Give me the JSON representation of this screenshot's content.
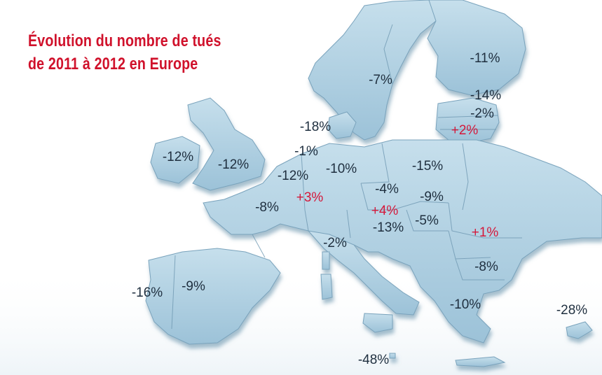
{
  "title": {
    "line1": "Évolution du nombre de tués",
    "line2": "de 2011 à 2012 en Europe"
  },
  "colors": {
    "title": "#d0112b",
    "decrease_label": "#1f2f3f",
    "increase_label": "#d4183a",
    "land_fill": "#a8ccdf",
    "land_edge": "#6f98b2",
    "background": "#ffffff"
  },
  "labels": [
    {
      "id": "finland",
      "text": "-11%",
      "trend": "down"
    },
    {
      "id": "sweden",
      "text": "-7%",
      "trend": "down"
    },
    {
      "id": "estonia",
      "text": "-14%",
      "trend": "down"
    },
    {
      "id": "latvia",
      "text": "-2%",
      "trend": "down"
    },
    {
      "id": "lithuania",
      "text": "+2%",
      "trend": "up"
    },
    {
      "id": "denmark",
      "text": "-18%",
      "trend": "down"
    },
    {
      "id": "ireland",
      "text": "-12%",
      "trend": "down"
    },
    {
      "id": "united-kingdom",
      "text": "-12%",
      "trend": "down"
    },
    {
      "id": "netherlands",
      "text": "-1%",
      "trend": "down"
    },
    {
      "id": "belgium",
      "text": "-12%",
      "trend": "down"
    },
    {
      "id": "germany",
      "text": "-10%",
      "trend": "down"
    },
    {
      "id": "poland",
      "text": "-15%",
      "trend": "down"
    },
    {
      "id": "luxembourg",
      "text": "+3%",
      "trend": "up"
    },
    {
      "id": "czech-republic",
      "text": "-4%",
      "trend": "down"
    },
    {
      "id": "slovakia",
      "text": "-9%",
      "trend": "down"
    },
    {
      "id": "france",
      "text": "-8%",
      "trend": "down"
    },
    {
      "id": "austria",
      "text": "+4%",
      "trend": "up"
    },
    {
      "id": "hungary",
      "text": "-5%",
      "trend": "down"
    },
    {
      "id": "slovenia",
      "text": "-13%",
      "trend": "down"
    },
    {
      "id": "romania",
      "text": "+1%",
      "trend": "up"
    },
    {
      "id": "italy",
      "text": "-2%",
      "trend": "down"
    },
    {
      "id": "bulgaria",
      "text": "-8%",
      "trend": "down"
    },
    {
      "id": "portugal",
      "text": "-16%",
      "trend": "down"
    },
    {
      "id": "spain",
      "text": "-9%",
      "trend": "down"
    },
    {
      "id": "greece",
      "text": "-10%",
      "trend": "down"
    },
    {
      "id": "cyprus",
      "text": "-28%",
      "trend": "down"
    },
    {
      "id": "malta",
      "text": "-48%",
      "trend": "down"
    }
  ]
}
